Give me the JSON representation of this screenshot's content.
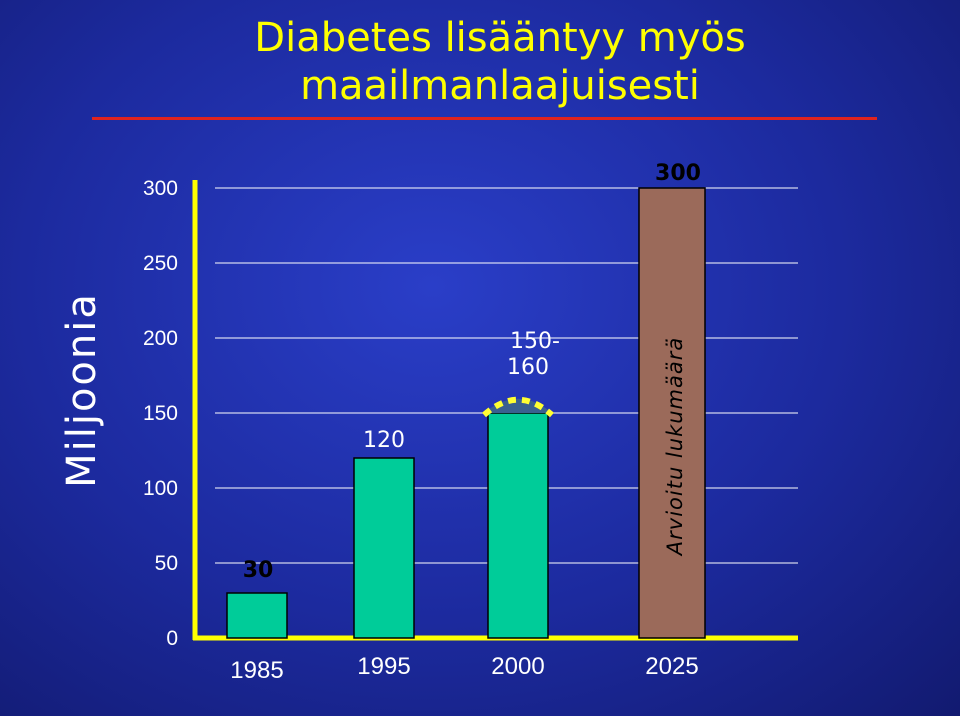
{
  "slide": {
    "title_line1": "Diabetes lisääntyy myös",
    "title_line2": "maailmanlaajuisesti",
    "ylabel": "Miljoonia"
  },
  "colors": {
    "bar_green": "#00cc99",
    "bar_projection": "#9b6a5a",
    "axis_yellow": "#ffff00",
    "range_cap": "#3a6090",
    "title_rule": "#e0231f"
  },
  "chart_data": {
    "type": "bar",
    "title": "Diabetes lisääntyy myös maailmanlaajuisesti",
    "xlabel": "",
    "ylabel": "Miljoonia",
    "ylim": [
      0,
      300
    ],
    "yticks": [
      0,
      50,
      100,
      150,
      200,
      250,
      300
    ],
    "grid": true,
    "categories": [
      "1985",
      "1995",
      "2000",
      "2025"
    ],
    "values": [
      30,
      120,
      150,
      300
    ],
    "ranges": [
      null,
      null,
      [
        150,
        160
      ],
      null
    ],
    "data_labels": [
      "30",
      "120",
      "150-\n160",
      "300"
    ],
    "projected": [
      false,
      false,
      false,
      true
    ],
    "annotation": "Arvioitu lukumäärä"
  }
}
